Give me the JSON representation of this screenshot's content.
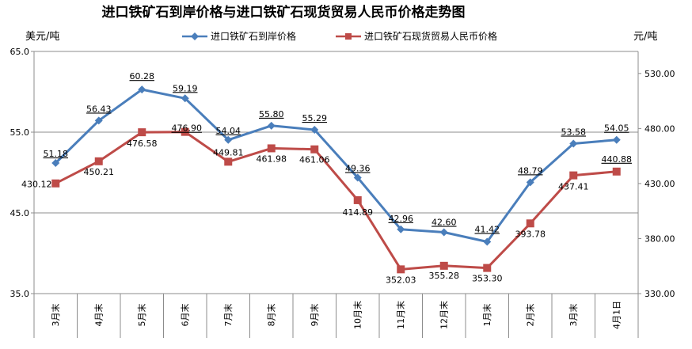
{
  "chart_data": {
    "type": "line",
    "title": "进口铁矿石到岸价格与进口铁矿石现货贸易人民币价格走势图",
    "left_unit": "美元/吨",
    "right_unit": "元/吨",
    "categories": [
      "3月末",
      "4月末",
      "5月末",
      "6月末",
      "7月末",
      "8月末",
      "9月末",
      "10月末",
      "11月末",
      "12月末",
      "1月末",
      "2月末",
      "3月末",
      "4月1日"
    ],
    "left_axis": {
      "min": 35,
      "max": 65,
      "ticks": [
        "35.0",
        "45.0",
        "55.0",
        "65.0"
      ]
    },
    "right_axis": {
      "min": 330,
      "max": 550,
      "ticks": [
        "330.00",
        "380.00",
        "430.00",
        "480.00",
        "530.00"
      ]
    },
    "series": [
      {
        "name": "进口铁矿石到岸价格",
        "axis": "left",
        "color": "#4A7EBB",
        "marker": "diamond",
        "values": [
          51.18,
          56.43,
          60.28,
          59.19,
          54.04,
          55.8,
          55.29,
          49.36,
          42.96,
          42.6,
          41.42,
          48.79,
          53.58,
          54.05
        ],
        "labels": [
          "51.18",
          "56.43",
          "60.28",
          "59.19",
          "54.04",
          "55.80",
          "55.29",
          "49.36",
          "42.96",
          "42.60",
          "41.42",
          "48.79",
          "53.58",
          "54.05"
        ]
      },
      {
        "name": "进口铁矿石现货贸易人民币价格",
        "axis": "right",
        "color": "#BE4B48",
        "marker": "square",
        "values": [
          430.12,
          450.21,
          476.58,
          476.9,
          449.81,
          461.98,
          461.06,
          414.89,
          352.03,
          355.28,
          353.3,
          393.78,
          437.41,
          440.88
        ],
        "labels": [
          "430.12",
          "450.21",
          "476.58",
          "476.90",
          "449.81",
          "461.98",
          "461.06",
          "414.89",
          "352.03",
          "355.28",
          "353.30",
          "393.78",
          "437.41",
          "440.88"
        ]
      }
    ],
    "grid": "horizontal",
    "legend_position": "top"
  }
}
